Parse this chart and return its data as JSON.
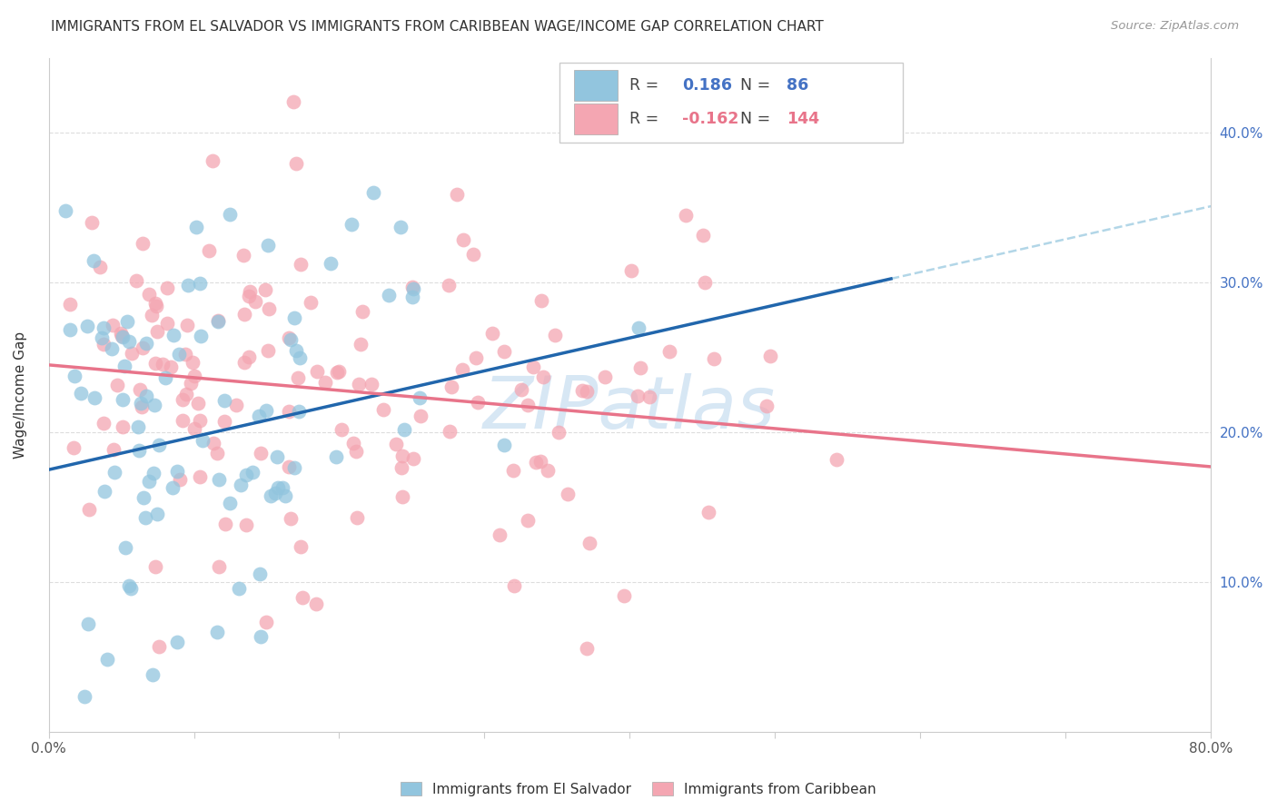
{
  "title": "IMMIGRANTS FROM EL SALVADOR VS IMMIGRANTS FROM CARIBBEAN WAGE/INCOME GAP CORRELATION CHART",
  "source": "Source: ZipAtlas.com",
  "ylabel": "Wage/Income Gap",
  "right_ytick_labels": [
    "10.0%",
    "20.0%",
    "30.0%",
    "40.0%"
  ],
  "right_ytick_vals": [
    0.1,
    0.2,
    0.3,
    0.4
  ],
  "legend_blue_R": "0.186",
  "legend_blue_N": "86",
  "legend_pink_R": "-0.162",
  "legend_pink_N": "144",
  "blue_color": "#92C5DE",
  "pink_color": "#F4A6B2",
  "blue_line_color": "#2166AC",
  "pink_line_color": "#E8748A",
  "blue_dashed_color": "#92C5DE",
  "watermark": "ZIPatlas",
  "xlim": [
    0.0,
    0.8
  ],
  "ylim": [
    0.0,
    0.45
  ],
  "grid_color": "#DDDDDD",
  "background_color": "#ffffff",
  "blue_N": 86,
  "pink_N": 144,
  "blue_seed": 42,
  "pink_seed": 99,
  "blue_intercept": 0.175,
  "blue_slope": 0.22,
  "pink_intercept": 0.245,
  "pink_slope": -0.085
}
